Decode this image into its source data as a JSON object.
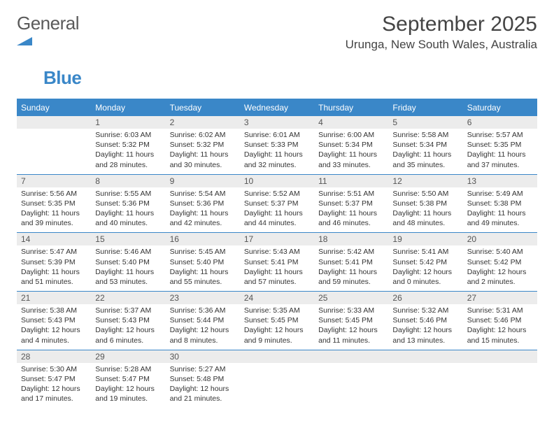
{
  "logo": {
    "text1": "General",
    "text2": "Blue",
    "shape_color": "#3a87c8"
  },
  "title": "September 2025",
  "location": "Urunga, New South Wales, Australia",
  "colors": {
    "header_bg": "#3a87c8",
    "header_fg": "#ffffff",
    "daynum_bg": "#ececec",
    "rule": "#3a87c8",
    "text": "#333333"
  },
  "weekdays": [
    "Sunday",
    "Monday",
    "Tuesday",
    "Wednesday",
    "Thursday",
    "Friday",
    "Saturday"
  ],
  "weeks": [
    [
      null,
      {
        "n": "1",
        "sr": "6:03 AM",
        "ss": "5:32 PM",
        "dl": "11 hours and 28 minutes."
      },
      {
        "n": "2",
        "sr": "6:02 AM",
        "ss": "5:32 PM",
        "dl": "11 hours and 30 minutes."
      },
      {
        "n": "3",
        "sr": "6:01 AM",
        "ss": "5:33 PM",
        "dl": "11 hours and 32 minutes."
      },
      {
        "n": "4",
        "sr": "6:00 AM",
        "ss": "5:34 PM",
        "dl": "11 hours and 33 minutes."
      },
      {
        "n": "5",
        "sr": "5:58 AM",
        "ss": "5:34 PM",
        "dl": "11 hours and 35 minutes."
      },
      {
        "n": "6",
        "sr": "5:57 AM",
        "ss": "5:35 PM",
        "dl": "11 hours and 37 minutes."
      }
    ],
    [
      {
        "n": "7",
        "sr": "5:56 AM",
        "ss": "5:35 PM",
        "dl": "11 hours and 39 minutes."
      },
      {
        "n": "8",
        "sr": "5:55 AM",
        "ss": "5:36 PM",
        "dl": "11 hours and 40 minutes."
      },
      {
        "n": "9",
        "sr": "5:54 AM",
        "ss": "5:36 PM",
        "dl": "11 hours and 42 minutes."
      },
      {
        "n": "10",
        "sr": "5:52 AM",
        "ss": "5:37 PM",
        "dl": "11 hours and 44 minutes."
      },
      {
        "n": "11",
        "sr": "5:51 AM",
        "ss": "5:37 PM",
        "dl": "11 hours and 46 minutes."
      },
      {
        "n": "12",
        "sr": "5:50 AM",
        "ss": "5:38 PM",
        "dl": "11 hours and 48 minutes."
      },
      {
        "n": "13",
        "sr": "5:49 AM",
        "ss": "5:38 PM",
        "dl": "11 hours and 49 minutes."
      }
    ],
    [
      {
        "n": "14",
        "sr": "5:47 AM",
        "ss": "5:39 PM",
        "dl": "11 hours and 51 minutes."
      },
      {
        "n": "15",
        "sr": "5:46 AM",
        "ss": "5:40 PM",
        "dl": "11 hours and 53 minutes."
      },
      {
        "n": "16",
        "sr": "5:45 AM",
        "ss": "5:40 PM",
        "dl": "11 hours and 55 minutes."
      },
      {
        "n": "17",
        "sr": "5:43 AM",
        "ss": "5:41 PM",
        "dl": "11 hours and 57 minutes."
      },
      {
        "n": "18",
        "sr": "5:42 AM",
        "ss": "5:41 PM",
        "dl": "11 hours and 59 minutes."
      },
      {
        "n": "19",
        "sr": "5:41 AM",
        "ss": "5:42 PM",
        "dl": "12 hours and 0 minutes."
      },
      {
        "n": "20",
        "sr": "5:40 AM",
        "ss": "5:42 PM",
        "dl": "12 hours and 2 minutes."
      }
    ],
    [
      {
        "n": "21",
        "sr": "5:38 AM",
        "ss": "5:43 PM",
        "dl": "12 hours and 4 minutes."
      },
      {
        "n": "22",
        "sr": "5:37 AM",
        "ss": "5:43 PM",
        "dl": "12 hours and 6 minutes."
      },
      {
        "n": "23",
        "sr": "5:36 AM",
        "ss": "5:44 PM",
        "dl": "12 hours and 8 minutes."
      },
      {
        "n": "24",
        "sr": "5:35 AM",
        "ss": "5:45 PM",
        "dl": "12 hours and 9 minutes."
      },
      {
        "n": "25",
        "sr": "5:33 AM",
        "ss": "5:45 PM",
        "dl": "12 hours and 11 minutes."
      },
      {
        "n": "26",
        "sr": "5:32 AM",
        "ss": "5:46 PM",
        "dl": "12 hours and 13 minutes."
      },
      {
        "n": "27",
        "sr": "5:31 AM",
        "ss": "5:46 PM",
        "dl": "12 hours and 15 minutes."
      }
    ],
    [
      {
        "n": "28",
        "sr": "5:30 AM",
        "ss": "5:47 PM",
        "dl": "12 hours and 17 minutes."
      },
      {
        "n": "29",
        "sr": "5:28 AM",
        "ss": "5:47 PM",
        "dl": "12 hours and 19 minutes."
      },
      {
        "n": "30",
        "sr": "5:27 AM",
        "ss": "5:48 PM",
        "dl": "12 hours and 21 minutes."
      },
      null,
      null,
      null,
      null
    ]
  ],
  "labels": {
    "sunrise": "Sunrise:",
    "sunset": "Sunset:",
    "daylight": "Daylight:"
  }
}
